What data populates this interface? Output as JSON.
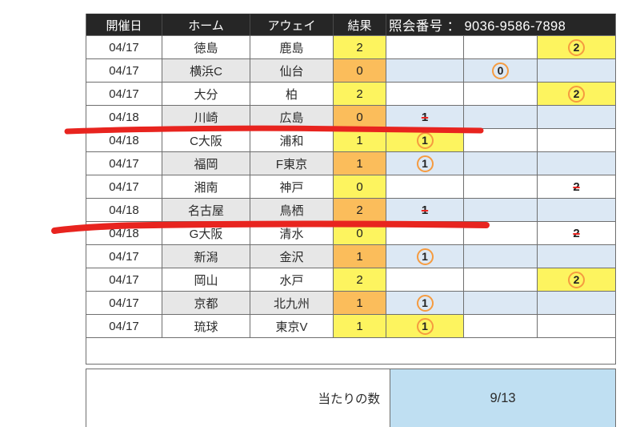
{
  "header": {
    "columns": [
      "開催日",
      "ホーム",
      "アウェイ",
      "結果"
    ],
    "inquiry": "照会番号 ： 9036-9586-7898"
  },
  "rows": [
    {
      "date": "04/17",
      "home": "徳島",
      "away": "鹿島",
      "result": "2",
      "mark": {
        "col": "2",
        "type": "circle",
        "value": "2"
      }
    },
    {
      "date": "04/17",
      "home": "横浜С",
      "away": "仙台",
      "result": "0",
      "mark": {
        "col": "0",
        "type": "circle",
        "value": "0"
      }
    },
    {
      "date": "04/17",
      "home": "大分",
      "away": "柏",
      "result": "2",
      "mark": {
        "col": "2",
        "type": "circle",
        "value": "2"
      }
    },
    {
      "date": "04/18",
      "home": "川崎",
      "away": "広島",
      "result": "0",
      "mark": {
        "col": "1",
        "type": "strike",
        "value": "1"
      },
      "red_marker_line": true
    },
    {
      "date": "04/18",
      "home": "С大阪",
      "away": "浦和",
      "result": "1",
      "mark": {
        "col": "1",
        "type": "circle",
        "value": "1"
      }
    },
    {
      "date": "04/17",
      "home": "福岡",
      "away": "F東京",
      "result": "1",
      "mark": {
        "col": "1",
        "type": "circle",
        "value": "1"
      }
    },
    {
      "date": "04/17",
      "home": "湘南",
      "away": "神戸",
      "result": "0",
      "mark": {
        "col": "2",
        "type": "strike",
        "value": "2"
      }
    },
    {
      "date": "04/18",
      "home": "名古屋",
      "away": "鳥栖",
      "result": "2",
      "mark": {
        "col": "1",
        "type": "strike",
        "value": "1"
      },
      "red_marker_line": true
    },
    {
      "date": "04/18",
      "home": "G大阪",
      "away": "清水",
      "result": "0",
      "mark": {
        "col": "2",
        "type": "strike",
        "value": "2"
      }
    },
    {
      "date": "04/17",
      "home": "新潟",
      "away": "金沢",
      "result": "1",
      "mark": {
        "col": "1",
        "type": "circle",
        "value": "1"
      }
    },
    {
      "date": "04/17",
      "home": "岡山",
      "away": "水戸",
      "result": "2",
      "mark": {
        "col": "2",
        "type": "circle",
        "value": "2"
      }
    },
    {
      "date": "04/17",
      "home": "京都",
      "away": "北九州",
      "result": "1",
      "mark": {
        "col": "1",
        "type": "circle",
        "value": "1"
      }
    },
    {
      "date": "04/17",
      "home": "琉球",
      "away": "東京V",
      "result": "1",
      "mark": {
        "col": "1",
        "type": "circle",
        "value": "1"
      }
    }
  ],
  "footer": {
    "label": "当たりの数",
    "value": "9/13"
  },
  "colors": {
    "header_bg": "#262626",
    "yellow": "#fdf45f",
    "orange": "#fbbd5b",
    "row_gray": "#e7e7e7",
    "row_blue": "#dce8f4",
    "footer_blue": "#bfdff2",
    "border": "#6f6f6f",
    "ring_orange": "#f59b40",
    "marker_red": "#e8241f"
  }
}
